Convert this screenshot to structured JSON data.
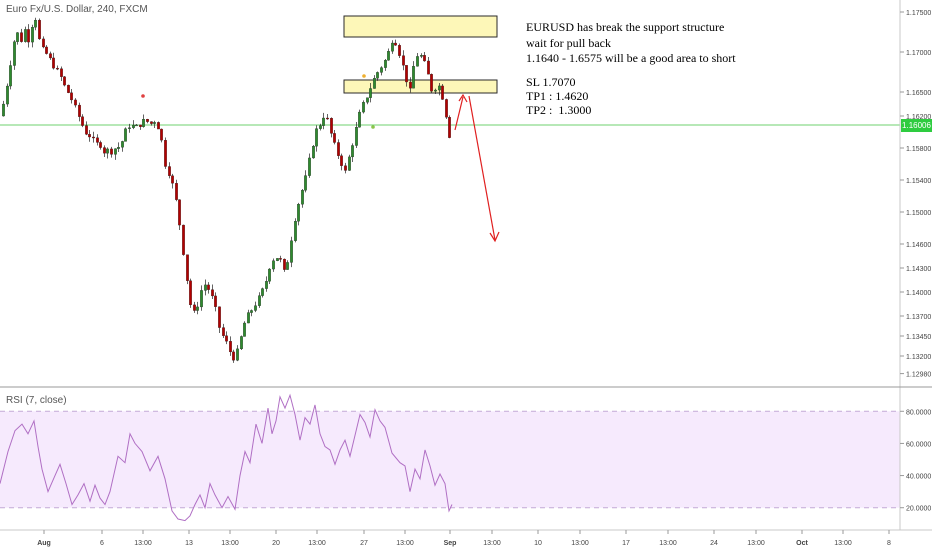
{
  "header": {
    "title": "Euro Fx/U.S. Dollar, 240, FXCM"
  },
  "annotation": {
    "line1": "EURUSD has break the support structure",
    "line2": "wait for pull back",
    "line3": "1.1640 - 1.6575 will be a good area to short",
    "sl": "SL 1.7070",
    "tp1": "TP1 : 1.4620",
    "tp2": "TP2 :  1.3000"
  },
  "rsi_panel": {
    "title": "RSI (7, close)"
  },
  "current_price": "1.16006",
  "colors": {
    "up": "#2e8b2e",
    "down": "#b30000",
    "rsi_line": "#b06fc4",
    "rsi_band": "#f6eafd",
    "zone_fill": "#fdf7b8",
    "zone_stroke": "#2a2a2a",
    "arrow": "#e02020",
    "price_line": "#6fd06f"
  },
  "chart_data": [
    {
      "type": "candlestick",
      "price_ticks": [
        "1.17500",
        "1.17000",
        "1.16500",
        "1.16200",
        "1.15800",
        "1.15400",
        "1.15000",
        "1.14600",
        "1.14300",
        "1.14000",
        "1.13700",
        "1.13450",
        "1.13200",
        "1.12980"
      ],
      "x_ticks": [
        "Aug",
        "6",
        "13:00",
        "13",
        "13:00",
        "20",
        "13:00",
        "27",
        "13:00",
        "Sep",
        "13:00",
        "10",
        "13:00",
        "17",
        "13:00",
        "24",
        "13:00",
        "Oct",
        "13:00",
        "8"
      ],
      "ylim": [
        1.129,
        1.176
      ],
      "close_path": [
        [
          0,
          1.162
        ],
        [
          4,
          1.164
        ],
        [
          8,
          1.167
        ],
        [
          12,
          1.17
        ],
        [
          16,
          1.173
        ],
        [
          20,
          1.171
        ],
        [
          24,
          1.173
        ],
        [
          28,
          1.1715
        ],
        [
          32,
          1.1735
        ],
        [
          35,
          1.1745
        ],
        [
          38,
          1.1725
        ],
        [
          40,
          1.1705
        ],
        [
          45,
          1.17
        ],
        [
          50,
          1.169
        ],
        [
          55,
          1.168
        ],
        [
          60,
          1.167
        ],
        [
          65,
          1.1655
        ],
        [
          70,
          1.1645
        ],
        [
          75,
          1.163
        ],
        [
          80,
          1.1615
        ],
        [
          85,
          1.16
        ],
        [
          90,
          1.1595
        ],
        [
          95,
          1.1585
        ],
        [
          100,
          1.1585
        ],
        [
          103,
          1.1575
        ],
        [
          106,
          1.1578
        ],
        [
          110,
          1.1575
        ],
        [
          115,
          1.158
        ],
        [
          120,
          1.1582
        ],
        [
          125,
          1.16
        ],
        [
          130,
          1.161
        ],
        [
          135,
          1.1605
        ],
        [
          140,
          1.161
        ],
        [
          145,
          1.1615
        ],
        [
          150,
          1.161
        ],
        [
          155,
          1.1615
        ],
        [
          160,
          1.16
        ],
        [
          165,
          1.156
        ],
        [
          170,
          1.1545
        ],
        [
          175,
          1.152
        ],
        [
          180,
          1.148
        ],
        [
          185,
          1.143
        ],
        [
          190,
          1.1385
        ],
        [
          195,
          1.137
        ],
        [
          200,
          1.14
        ],
        [
          205,
          1.141
        ],
        [
          210,
          1.14
        ],
        [
          215,
          1.138
        ],
        [
          220,
          1.135
        ],
        [
          225,
          1.134
        ],
        [
          230,
          1.1325
        ],
        [
          235,
          1.1315
        ],
        [
          240,
          1.134
        ],
        [
          245,
          1.1365
        ],
        [
          250,
          1.1375
        ],
        [
          255,
          1.1385
        ],
        [
          260,
          1.1395
        ],
        [
          265,
          1.141
        ],
        [
          270,
          1.1435
        ],
        [
          275,
          1.1445
        ],
        [
          280,
          1.144
        ],
        [
          285,
          1.142
        ],
        [
          290,
          1.146
        ],
        [
          295,
          1.1495
        ],
        [
          300,
          1.152
        ],
        [
          305,
          1.154
        ],
        [
          310,
          1.157
        ],
        [
          315,
          1.16
        ],
        [
          320,
          1.161
        ],
        [
          325,
          1.1625
        ],
        [
          330,
          1.16
        ],
        [
          335,
          1.158
        ],
        [
          340,
          1.1565
        ],
        [
          345,
          1.155
        ],
        [
          350,
          1.1575
        ],
        [
          355,
          1.16
        ],
        [
          360,
          1.1625
        ],
        [
          365,
          1.164
        ],
        [
          370,
          1.1655
        ],
        [
          375,
          1.167
        ],
        [
          380,
          1.168
        ],
        [
          385,
          1.169
        ],
        [
          390,
          1.1705
        ],
        [
          393,
          1.1722
        ],
        [
          396,
          1.171
        ],
        [
          400,
          1.1695
        ],
        [
          405,
          1.167
        ],
        [
          410,
          1.165
        ],
        [
          413,
          1.168
        ],
        [
          418,
          1.17
        ],
        [
          423,
          1.169
        ],
        [
          428,
          1.167
        ],
        [
          432,
          1.165
        ],
        [
          437,
          1.166
        ],
        [
          440,
          1.1655
        ],
        [
          443,
          1.164
        ],
        [
          446,
          1.162
        ],
        [
          449,
          1.1595
        ],
        [
          453,
          1.1605
        ]
      ]
    },
    {
      "type": "line",
      "name": "RSI (7, close)",
      "y_ticks": [
        "80.0000",
        "60.0000",
        "40.0000",
        "20.0000"
      ],
      "levels": [
        80,
        20
      ],
      "ylim": [
        8,
        92
      ],
      "x": [
        0,
        8,
        15,
        22,
        28,
        34,
        38,
        42,
        48,
        55,
        60,
        66,
        72,
        78,
        84,
        90,
        95,
        100,
        105,
        110,
        118,
        125,
        130,
        135,
        142,
        150,
        158,
        165,
        172,
        178,
        185,
        190,
        195,
        200,
        205,
        210,
        215,
        222,
        228,
        235,
        240,
        245,
        250,
        256,
        262,
        268,
        272,
        276,
        280,
        285,
        290,
        295,
        300,
        305,
        310,
        315,
        320,
        325,
        330,
        335,
        340,
        345,
        350,
        355,
        360,
        365,
        370,
        375,
        380,
        385,
        392,
        400,
        405,
        410,
        415,
        420,
        425,
        430,
        435,
        440,
        445,
        449,
        452
      ],
      "values": [
        35,
        55,
        68,
        72,
        66,
        74,
        58,
        44,
        30,
        40,
        47,
        35,
        22,
        28,
        35,
        24,
        34,
        26,
        22,
        30,
        52,
        48,
        66,
        60,
        55,
        43,
        52,
        38,
        18,
        13,
        12,
        15,
        22,
        28,
        20,
        35,
        28,
        20,
        27,
        19,
        40,
        55,
        48,
        72,
        60,
        82,
        66,
        74,
        89,
        82,
        90,
        78,
        62,
        76,
        72,
        84,
        66,
        58,
        56,
        47,
        56,
        62,
        52,
        65,
        78,
        73,
        64,
        81,
        74,
        70,
        54,
        48,
        46,
        30,
        44,
        38,
        56,
        46,
        34,
        41,
        35,
        18,
        22
      ]
    }
  ]
}
